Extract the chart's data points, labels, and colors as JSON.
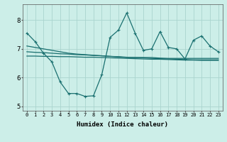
{
  "xlabel": "Humidex (Indice chaleur)",
  "bg_color": "#cceee8",
  "grid_color": "#aad4ce",
  "line_color": "#1a7070",
  "xlim": [
    -0.5,
    23.5
  ],
  "ylim": [
    4.85,
    8.55
  ],
  "yticks": [
    5,
    6,
    7,
    8
  ],
  "xticks": [
    0,
    1,
    2,
    3,
    4,
    5,
    6,
    7,
    8,
    9,
    10,
    11,
    12,
    13,
    14,
    15,
    16,
    17,
    18,
    19,
    20,
    21,
    22,
    23
  ],
  "series1_x": [
    0,
    1,
    2,
    3,
    4,
    5,
    6,
    7,
    8,
    9,
    10,
    11,
    12,
    13,
    14,
    15,
    16,
    17,
    18,
    19,
    20,
    21,
    22,
    23
  ],
  "series1_y": [
    7.55,
    7.25,
    6.85,
    6.55,
    5.85,
    5.45,
    5.45,
    5.35,
    5.37,
    6.1,
    7.4,
    7.65,
    8.25,
    7.55,
    6.95,
    7.0,
    7.6,
    7.05,
    7.0,
    6.65,
    7.3,
    7.45,
    7.1,
    6.9
  ],
  "series2_x": [
    0,
    1,
    2,
    3,
    4,
    5,
    6,
    7,
    8,
    9,
    10,
    11,
    12,
    13,
    14,
    15,
    16,
    17,
    18,
    19,
    20,
    21,
    22,
    23
  ],
  "series2_y": [
    7.1,
    7.05,
    7.0,
    6.95,
    6.9,
    6.85,
    6.82,
    6.8,
    6.78,
    6.76,
    6.74,
    6.72,
    6.7,
    6.7,
    6.7,
    6.7,
    6.68,
    6.67,
    6.67,
    6.67,
    6.67,
    6.67,
    6.67,
    6.67
  ],
  "series3_x": [
    0,
    1,
    2,
    3,
    4,
    5,
    6,
    7,
    8,
    9,
    10,
    11,
    12,
    13,
    14,
    15,
    16,
    17,
    18,
    19,
    20,
    21,
    22,
    23
  ],
  "series3_y": [
    6.9,
    6.88,
    6.87,
    6.85,
    6.83,
    6.82,
    6.8,
    6.79,
    6.77,
    6.76,
    6.74,
    6.73,
    6.71,
    6.7,
    6.69,
    6.67,
    6.66,
    6.65,
    6.64,
    6.63,
    6.62,
    6.62,
    6.62,
    6.62
  ],
  "series4_x": [
    0,
    1,
    2,
    3,
    4,
    5,
    6,
    7,
    8,
    9,
    10,
    11,
    12,
    13,
    14,
    15,
    16,
    17,
    18,
    19,
    20,
    21,
    22,
    23
  ],
  "series4_y": [
    6.75,
    6.75,
    6.74,
    6.74,
    6.73,
    6.73,
    6.72,
    6.71,
    6.71,
    6.7,
    6.69,
    6.68,
    6.67,
    6.66,
    6.65,
    6.64,
    6.64,
    6.63,
    6.62,
    6.61,
    6.61,
    6.6,
    6.6,
    6.6
  ],
  "markersize": 3.5,
  "linewidth": 0.9,
  "xlabel_fontsize": 6.5,
  "tick_fontsize": 5.0
}
